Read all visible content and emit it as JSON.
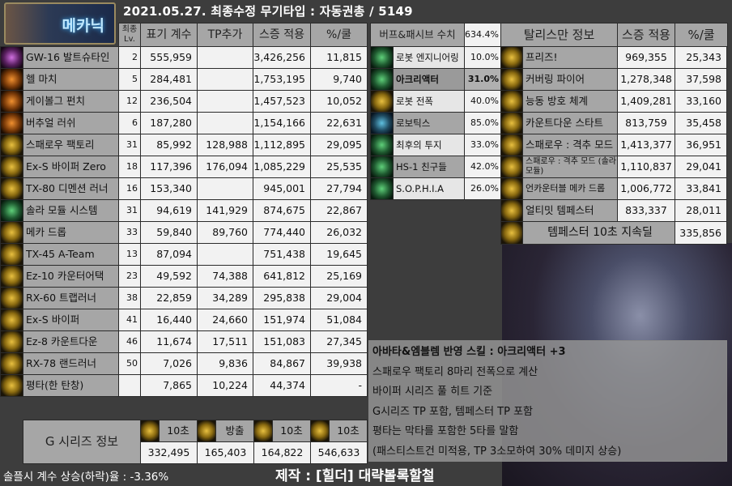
{
  "header": {
    "title": "2021.05.27. 최종수정     무기타입 : 자동권총 / 5149",
    "logo_label": "메카닉"
  },
  "skills": {
    "columns": [
      "최종 Lv.",
      "표기 계수",
      "TP추가",
      "스증 적용",
      "%/쿨"
    ],
    "rows": [
      {
        "icon": "gw16-icon",
        "color": "purple",
        "name": "GW-16 발트슈타인",
        "lv": "2",
        "coef": "555,959",
        "tp": "",
        "applied": "3,426,256",
        "per_cd": "11,815"
      },
      {
        "icon": "hell-march-icon",
        "color": "orange",
        "name": "헬 마치",
        "lv": "5",
        "coef": "284,481",
        "tp": "",
        "applied": "1,753,195",
        "per_cd": "9,740"
      },
      {
        "icon": "geibolg-punch-icon",
        "color": "orange",
        "name": "게이볼그 펀치",
        "lv": "12",
        "coef": "236,504",
        "tp": "",
        "applied": "1,457,523",
        "per_cd": "10,052"
      },
      {
        "icon": "virtual-rush-icon",
        "color": "orange",
        "name": "버추얼 러쉬",
        "lv": "6",
        "coef": "187,280",
        "tp": "",
        "applied": "1,154,166",
        "per_cd": "22,631"
      },
      {
        "icon": "sparrow-factory-icon",
        "color": "gold",
        "name": "스패로우 팩토리",
        "lv": "31",
        "coef": "85,992",
        "tp": "128,988",
        "applied": "1,112,895",
        "per_cd": "29,095"
      },
      {
        "icon": "ex-s-viper-zero-icon",
        "color": "gold",
        "name": "Ex-S 바이퍼 Zero",
        "lv": "18",
        "coef": "117,396",
        "tp": "176,094",
        "applied": "1,085,229",
        "per_cd": "25,535"
      },
      {
        "icon": "tx80-icon",
        "color": "gold",
        "name": "TX-80 디멘션 러너",
        "lv": "16",
        "coef": "153,340",
        "tp": "",
        "applied": "945,001",
        "per_cd": "27,794"
      },
      {
        "icon": "solar-module-icon",
        "color": "green",
        "name": "솔라 모듈 시스템",
        "lv": "31",
        "coef": "94,619",
        "tp": "141,929",
        "applied": "874,675",
        "per_cd": "22,867"
      },
      {
        "icon": "mecha-drop-icon",
        "color": "gold",
        "name": "메카 드롭",
        "lv": "33",
        "coef": "59,840",
        "tp": "89,760",
        "applied": "774,440",
        "per_cd": "26,032"
      },
      {
        "icon": "tx45-icon",
        "color": "gold",
        "name": "TX-45 A-Team",
        "lv": "13",
        "coef": "87,094",
        "tp": "",
        "applied": "751,438",
        "per_cd": "19,645"
      },
      {
        "icon": "ez10-icon",
        "color": "gold",
        "name": "Ez-10 카운터어택",
        "lv": "23",
        "coef": "49,592",
        "tp": "74,388",
        "applied": "641,812",
        "per_cd": "25,169"
      },
      {
        "icon": "rx60-icon",
        "color": "gold",
        "name": "RX-60 트랩러너",
        "lv": "38",
        "coef": "22,859",
        "tp": "34,289",
        "applied": "295,838",
        "per_cd": "29,004"
      },
      {
        "icon": "ex-s-viper-icon",
        "color": "gold",
        "name": "Ex-S 바이퍼",
        "lv": "41",
        "coef": "16,440",
        "tp": "24,660",
        "applied": "151,974",
        "per_cd": "51,084"
      },
      {
        "icon": "ez8-icon",
        "color": "gold",
        "name": "Ez-8 카운트다운",
        "lv": "46",
        "coef": "11,674",
        "tp": "17,511",
        "applied": "151,083",
        "per_cd": "27,345"
      },
      {
        "icon": "rx78-icon",
        "color": "gold",
        "name": "RX-78 랜드러너",
        "lv": "50",
        "coef": "7,026",
        "tp": "9,836",
        "applied": "84,867",
        "per_cd": "39,938"
      },
      {
        "icon": "basic-attack-icon",
        "color": "gold",
        "name": "평타(한 탄창)",
        "lv": "",
        "coef": "7,865",
        "tp": "10,224",
        "applied": "44,374",
        "per_cd": "-"
      }
    ]
  },
  "buffs": {
    "header_label": "버프&패시브 수치",
    "header_value": "634.4%",
    "rows": [
      {
        "icon": "robot-engineering-icon",
        "color": "green",
        "name": "로봇 엔지니어링",
        "value": "10.0%"
      },
      {
        "icon": "arc-reactor-icon",
        "color": "green",
        "name": "아크리액터",
        "value": "31.0%",
        "highlight": true
      },
      {
        "icon": "robot-explosion-icon",
        "color": "gold",
        "name": "로봇 전폭",
        "value": "40.0%"
      },
      {
        "icon": "robotics-icon",
        "color": "blue",
        "name": "로보틱스",
        "value": "85.0%"
      },
      {
        "icon": "last-stand-icon",
        "color": "green",
        "name": "최후의 투지",
        "value": "33.0%"
      },
      {
        "icon": "hs1-friends-icon",
        "color": "green",
        "name": "HS-1 친구들",
        "value": "42.0%"
      },
      {
        "icon": "sophia-icon",
        "color": "green",
        "name": "S.O.P.H.I.A",
        "value": "26.0%"
      }
    ]
  },
  "talisman": {
    "columns": [
      "탈리스만 정보",
      "스증 적용",
      "%/쿨"
    ],
    "rows": [
      {
        "icon": "freeze-icon",
        "name": "프리즈!",
        "applied": "969,355",
        "per_cd": "25,343"
      },
      {
        "icon": "covering-fire-icon",
        "name": "커버링 파이어",
        "applied": "1,278,348",
        "per_cd": "37,598"
      },
      {
        "icon": "active-defense-icon",
        "name": "능동 방호 체계",
        "applied": "1,409,281",
        "per_cd": "33,160"
      },
      {
        "icon": "countdown-start-icon",
        "name": "카운트다운 스타트",
        "applied": "813,759",
        "per_cd": "35,458"
      },
      {
        "icon": "sparrow-pursuit-icon",
        "name": "스패로우 : 격추 모드",
        "applied": "1,413,377",
        "per_cd": "36,951"
      },
      {
        "icon": "sparrow-pursuit-solar-icon",
        "name": "스패로우 : 격추 모드 (솔라 모듈)",
        "applied": "1,110,837",
        "per_cd": "29,041"
      },
      {
        "icon": "uncounterable-mecha-drop-icon",
        "name": "언카운터블 메카 드롭",
        "applied": "1,006,772",
        "per_cd": "33,841"
      },
      {
        "icon": "ultimate-tempester-icon",
        "name": "얼티밋 템페스터",
        "applied": "833,337",
        "per_cd": "28,011"
      }
    ],
    "tempester_label": "템페스터 10초 지속딜",
    "tempester_value": "335,856"
  },
  "g_series": {
    "label": "G 시리즈 정보",
    "items": [
      {
        "icon": "g1-icon",
        "tag": "10초",
        "value": "332,495"
      },
      {
        "icon": "g2-icon",
        "tag": "방출",
        "value": "165,403"
      },
      {
        "icon": "g2-icon",
        "tag": "10초",
        "value": "164,822"
      },
      {
        "icon": "g3-icon",
        "tag": "10초",
        "value": "546,633"
      }
    ]
  },
  "notes": [
    "아바타&엠블렘 반영 스킬 : 아크리액터 +3",
    "스패로우 팩토리 8마리 전폭으로 계산",
    "바이퍼 시리즈 풀 히트 기준",
    "G시리즈 TP 포함, 템페스터 TP 포함",
    "평타는 막타를 포함한 5타를 말함",
    "(패스티스트건 미적용, TP 3소모하여 30% 데미지 상승)"
  ],
  "footer": {
    "solo_rate": "솔플시 계수 상승(하락)율 : -3.36%",
    "credit": "제작 : [힐더] 대략볼록할철"
  }
}
